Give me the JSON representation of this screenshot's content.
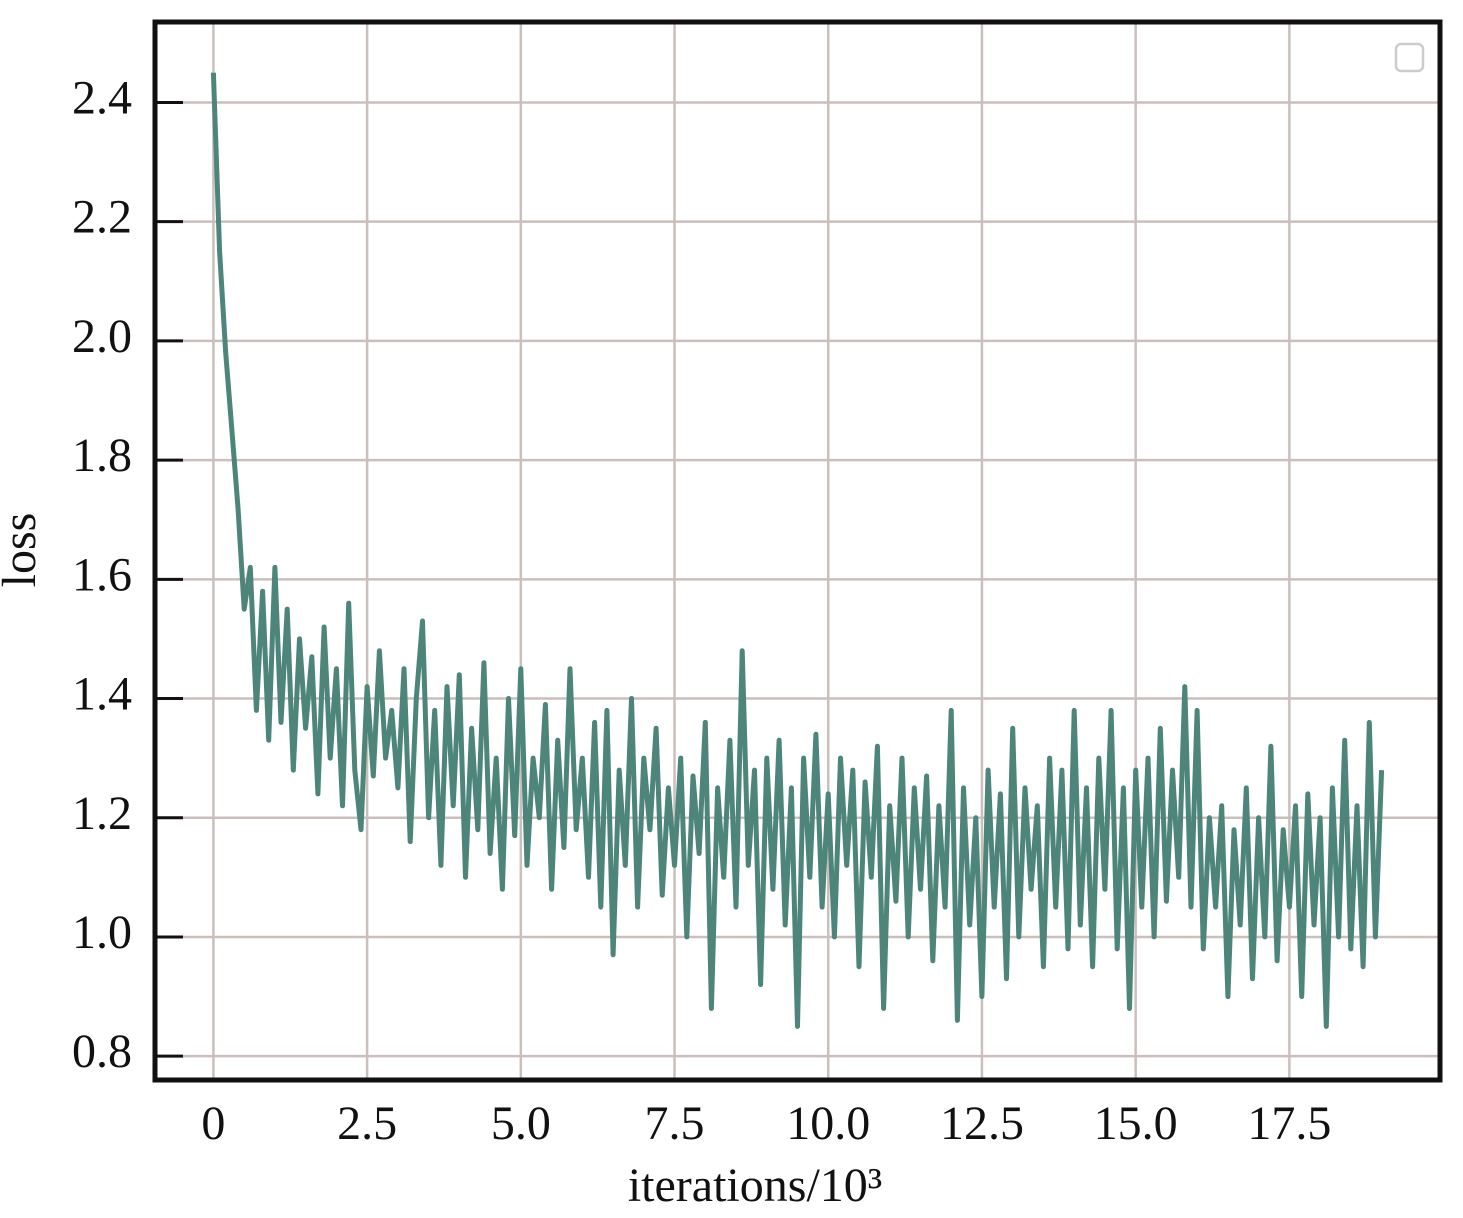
{
  "chart_data": {
    "type": "line",
    "x_label": "iterations/10³",
    "y_label": "loss",
    "xlim": [
      -0.95,
      19.95
    ],
    "ylim": [
      0.76,
      2.535
    ],
    "xticks": [
      0,
      2.5,
      {
        "value": 5,
        "label": "5.0"
      },
      7.5,
      {
        "value": 10,
        "label": "10.0"
      },
      12.5,
      {
        "value": 15,
        "label": "15.0"
      },
      17.5
    ],
    "yticks": [
      0.8,
      {
        "value": 1,
        "label": "1.0"
      },
      1.2,
      1.4,
      1.6,
      1.8,
      {
        "value": 2,
        "label": "2.0"
      },
      2.2,
      2.4
    ],
    "grid": true,
    "x": [
      0,
      0.1,
      0.2,
      0.3,
      0.4,
      0.5,
      0.6,
      0.7,
      0.8,
      0.9,
      1,
      1.1,
      1.2,
      1.3,
      1.4,
      1.5,
      1.6,
      1.7,
      1.8,
      1.9,
      2,
      2.1,
      2.2,
      2.3,
      2.4,
      2.5,
      2.6,
      2.7,
      2.8,
      2.9,
      3,
      3.1,
      3.2,
      3.3,
      3.4,
      3.5,
      3.6,
      3.7,
      3.8,
      3.9,
      4,
      4.1,
      4.2,
      4.3,
      4.4,
      4.5,
      4.6,
      4.7,
      4.8,
      4.9,
      5,
      5.1,
      5.2,
      5.3,
      5.4,
      5.5,
      5.6,
      5.7,
      5.8,
      5.9,
      6,
      6.1,
      6.2,
      6.3,
      6.4,
      6.5,
      6.6,
      6.7,
      6.8,
      6.9,
      7,
      7.1,
      7.2,
      7.3,
      7.4,
      7.5,
      7.6,
      7.7,
      7.8,
      7.9,
      8,
      8.1,
      8.2,
      8.3,
      8.4,
      8.5,
      8.6,
      8.7,
      8.8,
      8.9,
      9,
      9.1,
      9.2,
      9.3,
      9.4,
      9.5,
      9.6,
      9.7,
      9.8,
      9.9,
      10,
      10.1,
      10.2,
      10.3,
      10.4,
      10.5,
      10.6,
      10.7,
      10.8,
      10.9,
      11,
      11.1,
      11.2,
      11.3,
      11.4,
      11.5,
      11.6,
      11.7,
      11.8,
      11.9,
      12,
      12.1,
      12.2,
      12.3,
      12.4,
      12.5,
      12.6,
      12.7,
      12.8,
      12.9,
      13,
      13.1,
      13.2,
      13.3,
      13.4,
      13.5,
      13.6,
      13.7,
      13.8,
      13.9,
      14,
      14.1,
      14.2,
      14.3,
      14.4,
      14.5,
      14.6,
      14.7,
      14.8,
      14.9,
      15,
      15.1,
      15.2,
      15.3,
      15.4,
      15.5,
      15.6,
      15.7,
      15.8,
      15.9,
      16,
      16.1,
      16.2,
      16.3,
      16.4,
      16.5,
      16.6,
      16.7,
      16.8,
      16.9,
      17,
      17.1,
      17.2,
      17.3,
      17.4,
      17.5,
      17.6,
      17.7,
      17.8,
      17.9,
      18,
      18.1,
      18.2,
      18.3,
      18.4,
      18.5,
      18.6,
      18.7,
      18.8,
      18.9,
      19
    ],
    "series": [
      {
        "color": "#4e857a",
        "values": [
          2.45,
          2.15,
          1.98,
          1.85,
          1.72,
          1.55,
          1.62,
          1.38,
          1.58,
          1.33,
          1.62,
          1.36,
          1.55,
          1.28,
          1.5,
          1.35,
          1.47,
          1.24,
          1.52,
          1.3,
          1.45,
          1.22,
          1.56,
          1.28,
          1.18,
          1.42,
          1.27,
          1.48,
          1.3,
          1.38,
          1.25,
          1.45,
          1.16,
          1.4,
          1.53,
          1.2,
          1.38,
          1.12,
          1.42,
          1.22,
          1.44,
          1.1,
          1.35,
          1.18,
          1.46,
          1.14,
          1.3,
          1.08,
          1.4,
          1.17,
          1.45,
          1.12,
          1.3,
          1.2,
          1.39,
          1.08,
          1.33,
          1.15,
          1.45,
          1.18,
          1.3,
          1.1,
          1.36,
          1.05,
          1.38,
          0.97,
          1.28,
          1.12,
          1.4,
          1.05,
          1.3,
          1.18,
          1.35,
          1.07,
          1.25,
          1.12,
          1.3,
          1,
          1.27,
          1.14,
          1.36,
          0.88,
          1.25,
          1.1,
          1.33,
          1.05,
          1.48,
          1.12,
          1.28,
          0.92,
          1.3,
          1.08,
          1.33,
          1.02,
          1.25,
          0.85,
          1.3,
          1.1,
          1.34,
          1.05,
          1.24,
          1,
          1.3,
          1.12,
          1.28,
          0.95,
          1.26,
          1.1,
          1.32,
          0.88,
          1.22,
          1.06,
          1.3,
          1,
          1.25,
          1.08,
          1.27,
          0.96,
          1.22,
          1.05,
          1.38,
          0.86,
          1.25,
          1.02,
          1.2,
          0.9,
          1.28,
          1.05,
          1.24,
          0.93,
          1.35,
          1,
          1.25,
          1.08,
          1.22,
          0.95,
          1.3,
          1.05,
          1.28,
          0.98,
          1.38,
          1.02,
          1.25,
          0.95,
          1.3,
          1.08,
          1.38,
          0.98,
          1.25,
          0.88,
          1.28,
          1.05,
          1.3,
          1,
          1.35,
          1.06,
          1.28,
          1.1,
          1.42,
          1.05,
          1.38,
          0.98,
          1.2,
          1.05,
          1.22,
          0.9,
          1.18,
          1.02,
          1.25,
          0.93,
          1.2,
          1,
          1.32,
          0.96,
          1.18,
          1.05,
          1.22,
          0.9,
          1.24,
          1.02,
          1.2,
          0.85,
          1.25,
          1,
          1.33,
          0.98,
          1.22,
          0.95,
          1.36,
          1,
          1.28
        ]
      }
    ]
  }
}
